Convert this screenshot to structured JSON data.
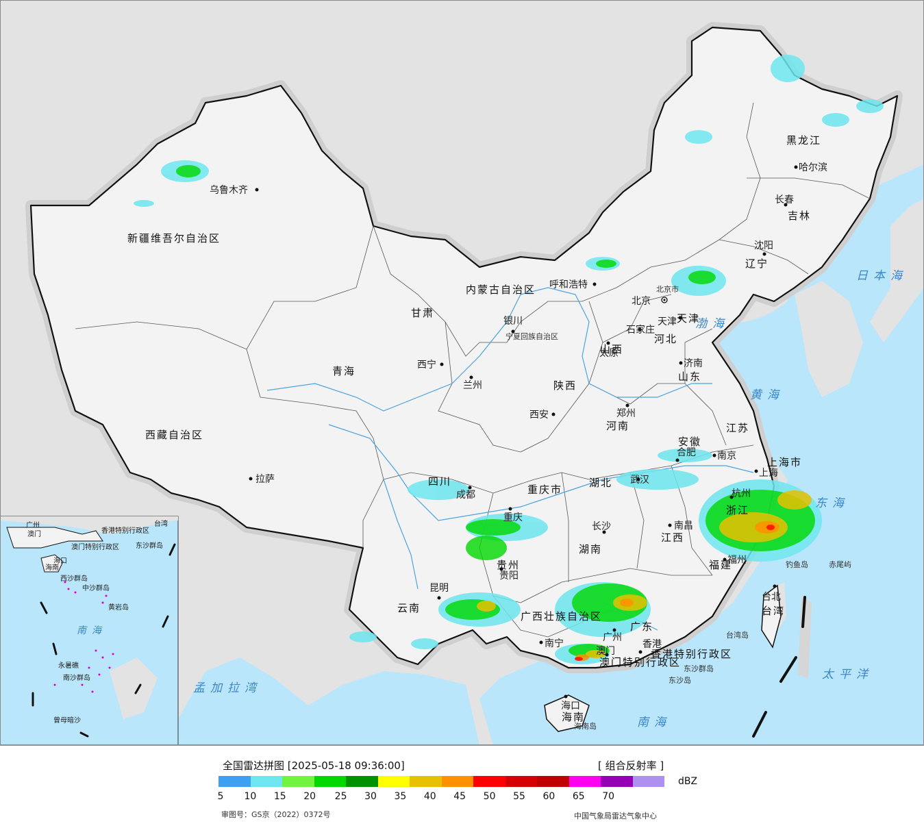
{
  "map": {
    "provinces": [
      {
        "name": "新疆维吾尔自治区"
      },
      {
        "name": "西藏自治区"
      },
      {
        "name": "青海"
      },
      {
        "name": "甘肃"
      },
      {
        "name": "内蒙古自治区"
      },
      {
        "name": "四川"
      },
      {
        "name": "云南"
      },
      {
        "name": "贵州"
      },
      {
        "name": "广西壮族自治区"
      },
      {
        "name": "广东"
      },
      {
        "name": "湖南"
      },
      {
        "name": "湖北"
      },
      {
        "name": "江西"
      },
      {
        "name": "福建"
      },
      {
        "name": "浙江"
      },
      {
        "name": "江苏"
      },
      {
        "name": "安徽"
      },
      {
        "name": "河南"
      },
      {
        "name": "山东"
      },
      {
        "name": "河北"
      },
      {
        "name": "山西"
      },
      {
        "name": "陕西"
      },
      {
        "name": "宁夏回族自治区"
      },
      {
        "name": "重庆市"
      },
      {
        "name": "黑龙江"
      },
      {
        "name": "吉林"
      },
      {
        "name": "辽宁"
      },
      {
        "name": "台湾"
      },
      {
        "name": "海南"
      },
      {
        "name": "上海市"
      },
      {
        "name": "北京市"
      },
      {
        "name": "天津"
      },
      {
        "name": "香港特别行政区"
      },
      {
        "name": "澳门特别行政区"
      }
    ],
    "cities": [
      {
        "name": "乌鲁木齐"
      },
      {
        "name": "拉萨"
      },
      {
        "name": "西宁"
      },
      {
        "name": "兰州"
      },
      {
        "name": "银川"
      },
      {
        "name": "呼和浩特"
      },
      {
        "name": "北京"
      },
      {
        "name": "天津"
      },
      {
        "name": "石家庄"
      },
      {
        "name": "太原"
      },
      {
        "name": "济南"
      },
      {
        "name": "郑州"
      },
      {
        "name": "西安"
      },
      {
        "name": "成都"
      },
      {
        "name": "重庆"
      },
      {
        "name": "贵阳"
      },
      {
        "name": "昆明"
      },
      {
        "name": "南宁"
      },
      {
        "name": "广州"
      },
      {
        "name": "澳门"
      },
      {
        "name": "香港"
      },
      {
        "name": "海口"
      },
      {
        "name": "长沙"
      },
      {
        "name": "武汉"
      },
      {
        "name": "南昌"
      },
      {
        "name": "福州"
      },
      {
        "name": "台北"
      },
      {
        "name": "杭州"
      },
      {
        "name": "南京"
      },
      {
        "name": "合肥"
      },
      {
        "name": "上海"
      },
      {
        "name": "沈阳"
      },
      {
        "name": "长春"
      },
      {
        "name": "哈尔滨"
      }
    ],
    "seas": [
      {
        "name": "日本海"
      },
      {
        "name": "渤海"
      },
      {
        "name": "黄海"
      },
      {
        "name": "东海"
      },
      {
        "name": "太平洋"
      },
      {
        "name": "南海"
      },
      {
        "name": "孟加拉湾"
      }
    ],
    "islands": [
      {
        "name": "钓鱼岛"
      },
      {
        "name": "赤尾屿"
      },
      {
        "name": "台湾岛"
      },
      {
        "name": "东沙群岛"
      },
      {
        "name": "东沙岛"
      },
      {
        "name": "海南岛"
      }
    ],
    "inset": {
      "labels": [
        {
          "name": "广州"
        },
        {
          "name": "澳门"
        },
        {
          "name": "台湾"
        },
        {
          "name": "香港特别行政区"
        },
        {
          "name": "澳门特别行政区"
        },
        {
          "name": "东沙群岛"
        },
        {
          "name": "海口"
        },
        {
          "name": "海南"
        },
        {
          "name": "西沙群岛"
        },
        {
          "name": "中沙群岛"
        },
        {
          "name": "黄岩岛"
        },
        {
          "name": "南海"
        },
        {
          "name": "永暑礁"
        },
        {
          "name": "南沙群岛"
        },
        {
          "name": "曾母暗沙"
        }
      ]
    },
    "colors": {
      "land_china": "#f2f2f2",
      "land_other": "#e3e3e3",
      "sea": "#b9e6fa",
      "border": "#111111",
      "river": "#4aa3e0"
    }
  },
  "legend": {
    "title": "全国雷达拼图 [2025-05-18 09:36:00]",
    "product": "[ 组合反射率 ]",
    "unit": "dBZ",
    "ticks": [
      "5",
      "10",
      "15",
      "20",
      "25",
      "30",
      "35",
      "40",
      "45",
      "50",
      "55",
      "60",
      "65",
      "70"
    ],
    "colors": [
      "#3f9ff0",
      "#6ee6ef",
      "#72f33f",
      "#00d800",
      "#009100",
      "#ffff00",
      "#e7c000",
      "#ff9000",
      "#ff0000",
      "#d60000",
      "#c00000",
      "#ff00f0",
      "#9600b4",
      "#ad90f0"
    ],
    "approval": "审图号：GS京（2022）0372号",
    "source": "中国气象局雷达气象中心"
  }
}
